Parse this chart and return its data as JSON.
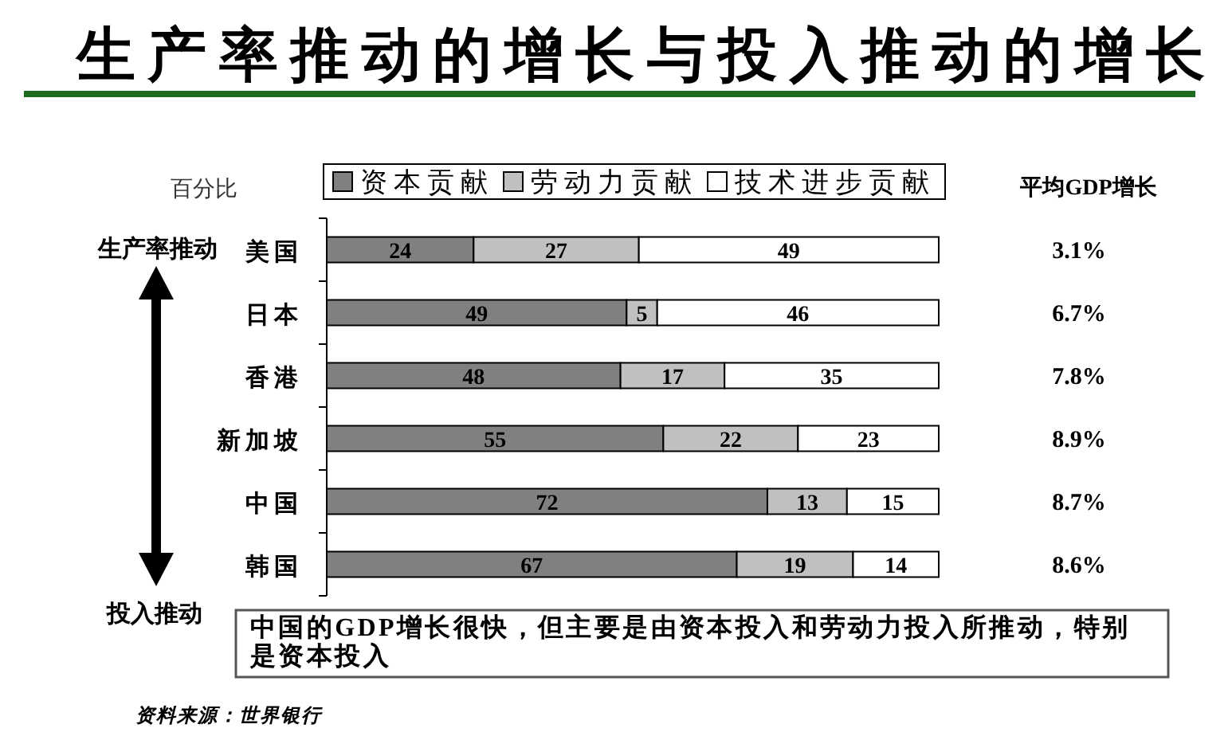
{
  "chart_data": {
    "type": "bar",
    "title": "生产率推动的增长与投入推动的增长",
    "xlabel": "百分比",
    "orientation": "horizontal",
    "stacked": true,
    "categories": [
      "美国",
      "日本",
      "香港",
      "新加坡",
      "中国",
      "韩国"
    ],
    "series": [
      {
        "name": "资本贡献",
        "color": "#808080",
        "values": [
          24,
          49,
          48,
          55,
          72,
          67
        ]
      },
      {
        "name": "劳动力贡献",
        "color": "#c0c0c0",
        "values": [
          27,
          5,
          17,
          22,
          13,
          19
        ]
      },
      {
        "name": "技术进步贡献",
        "color": "#ffffff",
        "values": [
          49,
          46,
          35,
          23,
          15,
          14
        ]
      }
    ],
    "data_labels": true,
    "legend": "top",
    "annotations": [
      "平均GDP增长",
      "3.1%",
      "6.7%",
      "7.8%",
      "8.9%",
      "8.7%",
      "8.6%",
      "生产率推动",
      "投入推动",
      "中国的GDP增长很快，但主要是由资本投入和劳动力投入所推动，特别是资本投入",
      "资料来源：世界银行"
    ]
  }
}
